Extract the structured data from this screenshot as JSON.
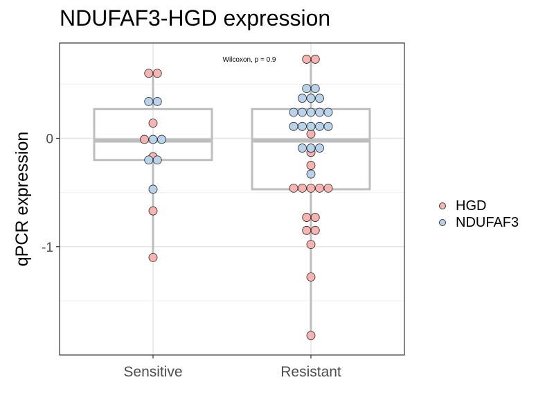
{
  "chart_data": {
    "type": "box+dot",
    "title": "NDUFAF3-HGD expression",
    "ylabel": "qPCR expression",
    "xlabel": "",
    "categories": [
      "Sensitive",
      "Resistant"
    ],
    "ylim": [
      -2.0,
      0.88
    ],
    "yticks": [
      0,
      -1
    ],
    "ytick_labels": [
      "0",
      "-1"
    ],
    "annotation": "Wilcoxon, p = 0.9",
    "grid": true,
    "legend_position": "right",
    "colors": {
      "HGD": "#F8B4B0",
      "NDUFAF3": "#B8D3EA",
      "box": "#BEBEBE"
    },
    "boxes": [
      {
        "category": "Sensitive",
        "q1": -0.2,
        "median": -0.02,
        "q3": 0.27,
        "whisker_low": -1.1,
        "whisker_high": 0.6
      },
      {
        "category": "Resistant",
        "q1": -0.47,
        "median": -0.02,
        "q3": 0.27,
        "whisker_low": -1.82,
        "whisker_high": 0.73
      }
    ],
    "series": [
      {
        "name": "HGD",
        "points": [
          {
            "category": "Sensitive",
            "values": [
              0.6,
              0.6,
              0.14,
              -0.01,
              -0.17,
              -0.67,
              -1.1
            ]
          },
          {
            "category": "Resistant",
            "values": [
              0.73,
              0.73,
              0.04,
              -0.13,
              -0.25,
              -0.46,
              -0.46,
              -0.46,
              -0.46,
              -0.46,
              -0.73,
              -0.73,
              -0.85,
              -0.85,
              -0.98,
              -1.28,
              -1.82
            ]
          }
        ]
      },
      {
        "name": "NDUFAF3",
        "points": [
          {
            "category": "Sensitive",
            "values": [
              0.34,
              0.34,
              -0.01,
              -0.01,
              -0.2,
              -0.2,
              -0.47
            ]
          },
          {
            "category": "Resistant",
            "values": [
              0.46,
              0.46,
              0.37,
              0.37,
              0.37,
              0.24,
              0.24,
              0.24,
              0.24,
              0.24,
              0.11,
              0.11,
              0.11,
              0.11,
              0.11,
              -0.09,
              -0.09,
              -0.09,
              -0.33
            ]
          }
        ]
      }
    ]
  }
}
